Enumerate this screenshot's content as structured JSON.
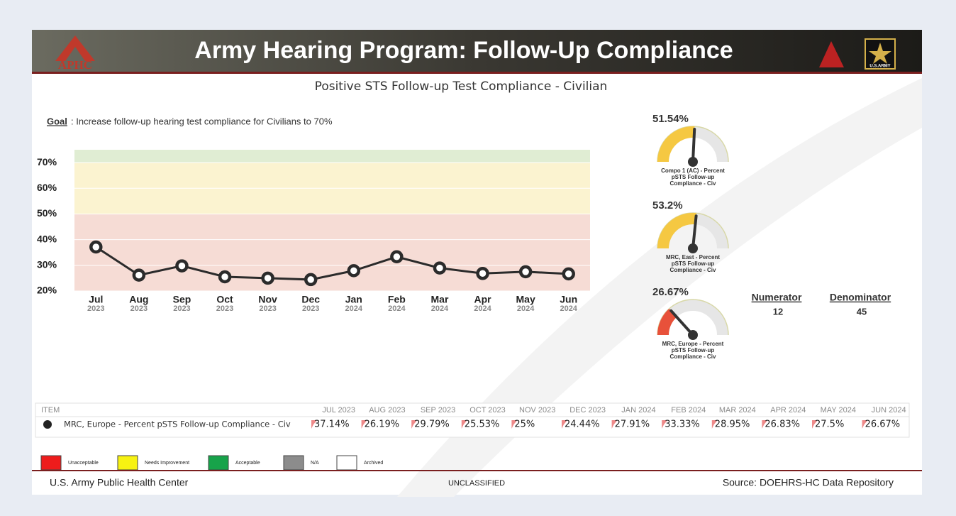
{
  "header": {
    "title": "Army Hearing Program: Follow-Up Compliance",
    "logo_left": "APHC",
    "logo_right": "U.S.ARMY"
  },
  "chart_data": {
    "type": "line",
    "title": "Positive STS Follow-up Test Compliance - Civilian",
    "goal_label": "Goal",
    "goal_text": ": Increase follow-up hearing test compliance for Civilians to 70%",
    "categories": [
      "Jul",
      "Aug",
      "Sep",
      "Oct",
      "Nov",
      "Dec",
      "Jan",
      "Feb",
      "Mar",
      "Apr",
      "May",
      "Jun"
    ],
    "category_years": [
      "2023",
      "2023",
      "2023",
      "2023",
      "2023",
      "2023",
      "2024",
      "2024",
      "2024",
      "2024",
      "2024",
      "2024"
    ],
    "values": [
      37.14,
      26.19,
      29.79,
      25.53,
      25,
      24.44,
      27.91,
      33.33,
      28.95,
      26.83,
      27.5,
      26.67
    ],
    "color": "#2b2b2b",
    "ylim": [
      20,
      75
    ],
    "yticks": [
      {
        "value": 20,
        "label": "20%"
      },
      {
        "value": 30,
        "label": "30%"
      },
      {
        "value": 40,
        "label": "40%"
      },
      {
        "value": 50,
        "label": "50%"
      },
      {
        "value": 60,
        "label": "60%"
      },
      {
        "value": 70,
        "label": "70%"
      }
    ],
    "bands": [
      {
        "from": 20,
        "to": 50,
        "color": "#f6dcd5"
      },
      {
        "from": 50,
        "to": 70,
        "color": "#fbf3d0"
      },
      {
        "from": 70,
        "to": 75,
        "color": "#e0edd3"
      }
    ]
  },
  "gauges": [
    {
      "value": 51.54,
      "label": "51.54%",
      "color": "#f5c842",
      "name_lines": [
        "Compo 1 (AC) - Percent",
        "pSTS Follow-up",
        "Compliance - Civ"
      ]
    },
    {
      "value": 53.2,
      "label": "53.2%",
      "color": "#f5c842",
      "name_lines": [
        "MRC, East - Percent",
        "pSTS Follow-up",
        "Compliance - Civ"
      ]
    },
    {
      "value": 26.67,
      "label": "26.67%",
      "color": "#e8513a",
      "name_lines": [
        "MRC, Europe - Percent",
        "pSTS Follow-up",
        "Compliance - Civ"
      ]
    }
  ],
  "gauge_range": [
    0,
    100
  ],
  "counts": {
    "numerator_label": "Numerator",
    "numerator": 12,
    "denominator_label": "Denominator",
    "denominator": 45
  },
  "table": {
    "columns": [
      "ITEM",
      "JUL 2023",
      "AUG 2023",
      "SEP 2023",
      "OCT 2023",
      "NOV 2023",
      "DEC 2023",
      "JAN 2024",
      "FEB 2024",
      "MAR 2024",
      "APR 2024",
      "MAY 2024",
      "JUN 2024"
    ],
    "rows": [
      {
        "item": "MRC, Europe - Percent pSTS Follow-up Compliance - Civ",
        "cells": [
          "37.14%",
          "26.19%",
          "29.79%",
          "25.53%",
          "25%",
          "24.44%",
          "27.91%",
          "33.33%",
          "28.95%",
          "26.83%",
          "27.5%",
          "26.67%"
        ]
      }
    ]
  },
  "legend": [
    {
      "label": "Unacceptable",
      "color": "#ee1c1c"
    },
    {
      "label": "Needs Improvement",
      "color": "#f7f212"
    },
    {
      "label": "Acceptable",
      "color": "#17a34a"
    },
    {
      "label": "N/A",
      "color": "#8c8c8c"
    },
    {
      "label": "Archived",
      "color": "#ffffff"
    }
  ],
  "footer": {
    "left": "U.S. Army Public Health Center",
    "center": "UNCLASSIFIED",
    "right": "Source:  DOEHRS-HC Data Repository"
  }
}
